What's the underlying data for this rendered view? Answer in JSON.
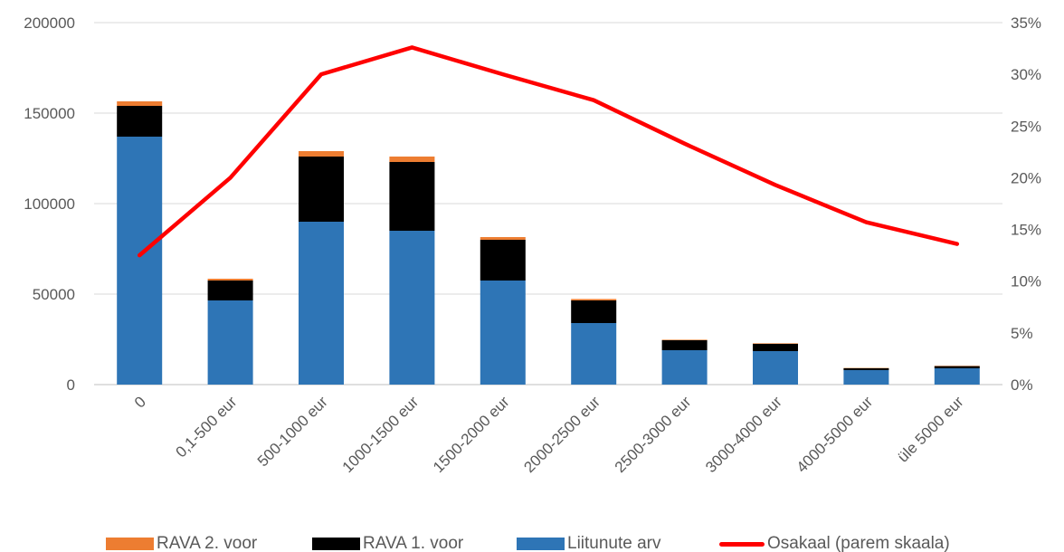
{
  "chart_data": {
    "type": "bar",
    "stacked": true,
    "categories": [
      "0",
      "0,1-500 eur",
      "500-1000 eur",
      "1000-1500 eur",
      "1500-2000 eur",
      "2000-2500 eur",
      "2500-3000 eur",
      "3000-4000 eur",
      "4000-5000 eur",
      "üle 5000 eur"
    ],
    "series": [
      {
        "name": "Liitunute arv",
        "kind": "bar",
        "axis": "left",
        "color": "#2E75B6",
        "values": [
          137000,
          46500,
          90000,
          85000,
          57500,
          34000,
          19000,
          18500,
          8000,
          9000
        ]
      },
      {
        "name": "RAVA 1. voor",
        "kind": "bar",
        "axis": "left",
        "color": "#000000",
        "values": [
          17000,
          11000,
          36000,
          38000,
          22500,
          12500,
          5500,
          4000,
          1000,
          1200
        ]
      },
      {
        "name": "RAVA 2. voor",
        "kind": "bar",
        "axis": "left",
        "color": "#ED7D31",
        "values": [
          2500,
          1000,
          3000,
          3000,
          1500,
          800,
          300,
          300,
          200,
          200
        ]
      },
      {
        "name": "Osakaal (parem skaala)",
        "kind": "line",
        "axis": "right",
        "color": "#FF0000",
        "values": [
          12.5,
          20,
          30,
          32.6,
          30,
          27.5,
          23.3,
          19.3,
          15.7,
          13.6
        ]
      }
    ],
    "y_left": {
      "min": 0,
      "max": 200000,
      "ticks": [
        "0",
        "50000",
        "100000",
        "150000",
        "200000"
      ]
    },
    "y_right": {
      "min": 0,
      "max": 35,
      "ticks": [
        "0%",
        "5%",
        "10%",
        "15%",
        "20%",
        "25%",
        "30%",
        "35%"
      ]
    },
    "grid": true,
    "legend_position": "bottom",
    "legend": [
      "RAVA 2. voor",
      "RAVA 1. voor",
      "Liitunute arv",
      "Osakaal (parem skaala)"
    ]
  }
}
